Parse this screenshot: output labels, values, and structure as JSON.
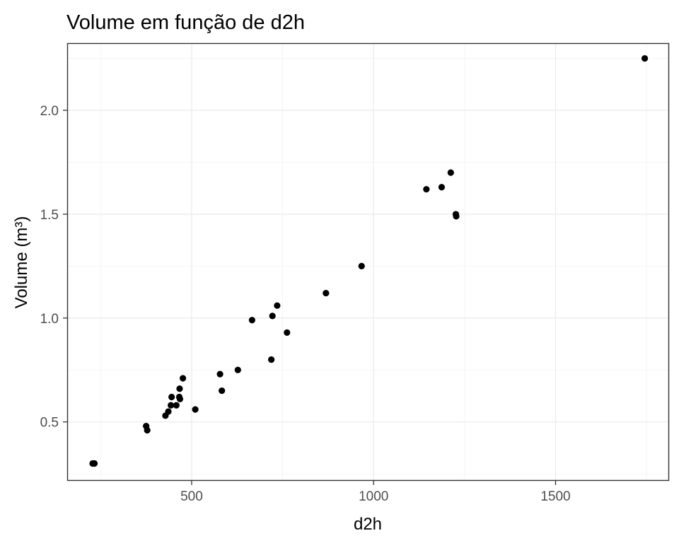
{
  "chart_data": {
    "type": "scatter",
    "title": "Volume em função de d2h",
    "xlabel": "d2h",
    "ylabel": "Volume (m³)",
    "xlim": [
      160,
      1810
    ],
    "ylim": [
      0.22,
      2.32
    ],
    "x_ticks": [
      500,
      1000,
      1500
    ],
    "x_tick_labels": [
      "500",
      "1000",
      "1500"
    ],
    "y_ticks": [
      0.5,
      1.0,
      1.5,
      2.0
    ],
    "y_tick_labels": [
      "0.5",
      "1.0",
      "1.5",
      "2.0"
    ],
    "grid": true,
    "legend": "none",
    "point_color": "#000000",
    "points": [
      {
        "x": 228,
        "y": 0.3
      },
      {
        "x": 233,
        "y": 0.3
      },
      {
        "x": 375,
        "y": 0.48
      },
      {
        "x": 378,
        "y": 0.46
      },
      {
        "x": 428,
        "y": 0.53
      },
      {
        "x": 436,
        "y": 0.55
      },
      {
        "x": 443,
        "y": 0.58
      },
      {
        "x": 445,
        "y": 0.62
      },
      {
        "x": 458,
        "y": 0.58
      },
      {
        "x": 466,
        "y": 0.62
      },
      {
        "x": 467,
        "y": 0.66
      },
      {
        "x": 468,
        "y": 0.61
      },
      {
        "x": 476,
        "y": 0.71
      },
      {
        "x": 510,
        "y": 0.56
      },
      {
        "x": 578,
        "y": 0.73
      },
      {
        "x": 583,
        "y": 0.65
      },
      {
        "x": 627,
        "y": 0.75
      },
      {
        "x": 666,
        "y": 0.99
      },
      {
        "x": 719,
        "y": 0.8
      },
      {
        "x": 722,
        "y": 1.01
      },
      {
        "x": 735,
        "y": 1.06
      },
      {
        "x": 762,
        "y": 0.93
      },
      {
        "x": 869,
        "y": 1.12
      },
      {
        "x": 967,
        "y": 1.25
      },
      {
        "x": 1145,
        "y": 1.62
      },
      {
        "x": 1187,
        "y": 1.63
      },
      {
        "x": 1212,
        "y": 1.7
      },
      {
        "x": 1226,
        "y": 1.5
      },
      {
        "x": 1227,
        "y": 1.49
      },
      {
        "x": 1745,
        "y": 2.25
      }
    ]
  }
}
